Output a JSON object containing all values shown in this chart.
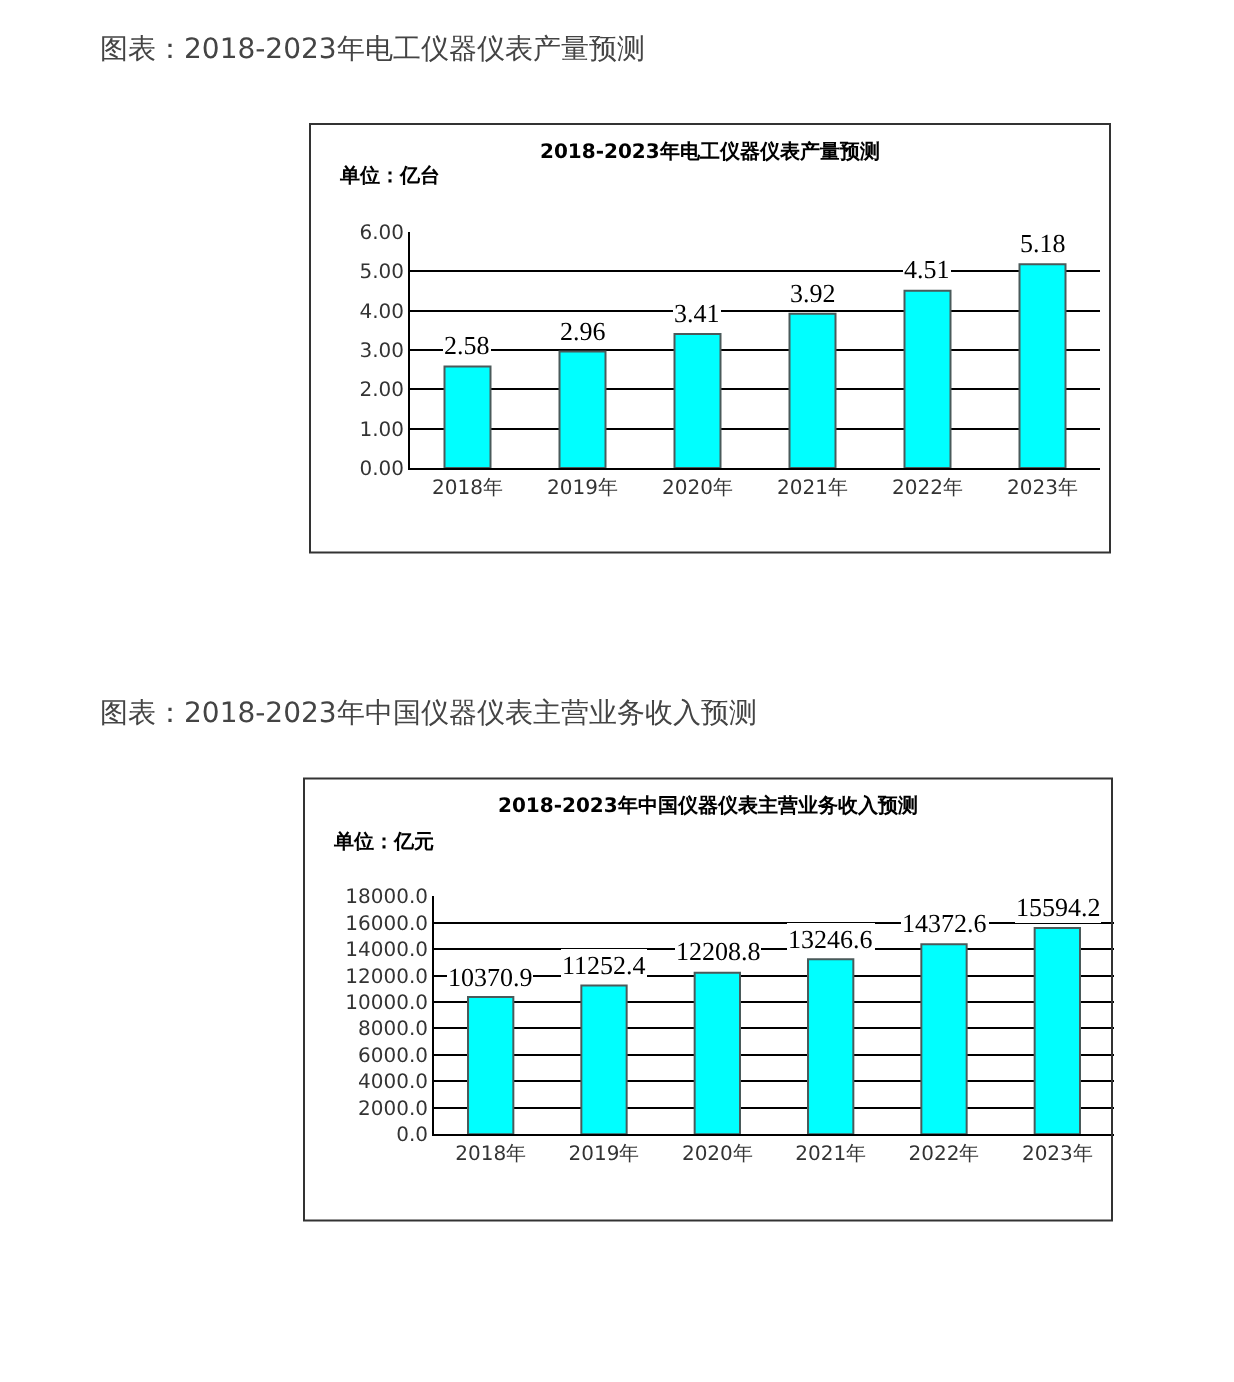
{
  "chart_data": [
    {
      "type": "bar",
      "title": "2018-2023年电工仪器仪表产量预测",
      "ylabel": "单位：亿台",
      "annotations": [
        "图表：2018-2023年电工仪器仪表产量预测"
      ],
      "categories": [
        "2018年",
        "2019年",
        "2020年",
        "2021年",
        "2022年",
        "2023年"
      ],
      "values": [
        2.58,
        2.96,
        3.41,
        3.92,
        4.51,
        5.18
      ],
      "color": "#00ffff",
      "ylim": [
        0,
        6
      ],
      "yticks": [
        {
          "value": 0,
          "label": "0.00"
        },
        {
          "value": 1,
          "label": "1.00"
        },
        {
          "value": 2,
          "label": "2.00"
        },
        {
          "value": 3,
          "label": "3.00"
        },
        {
          "value": 4,
          "label": "4.00"
        },
        {
          "value": 5,
          "label": "5.00"
        },
        {
          "value": 6,
          "label": "6.00"
        }
      ],
      "grid": "y",
      "data_labels": true
    },
    {
      "type": "bar",
      "title": "2018-2023年中国仪器仪表主营业务收入预测",
      "ylabel": "单位：亿元",
      "annotations": [
        "图表：2018-2023年中国仪器仪表主营业务收入预测"
      ],
      "categories": [
        "2018年",
        "2019年",
        "2020年",
        "2021年",
        "2022年",
        "2023年"
      ],
      "values": [
        10370.9,
        11252.4,
        12208.8,
        13246.6,
        14372.6,
        15594.2
      ],
      "color": "#00ffff",
      "ylim": [
        0,
        18000
      ],
      "yticks": [
        {
          "value": 0,
          "label": "0.0"
        },
        {
          "value": 2000,
          "label": "2000.0"
        },
        {
          "value": 4000,
          "label": "4000.0"
        },
        {
          "value": 6000,
          "label": "6000.0"
        },
        {
          "value": 8000,
          "label": "8000.0"
        },
        {
          "value": 10000,
          "label": "10000.0"
        },
        {
          "value": 12000,
          "label": "12000.0"
        },
        {
          "value": 14000,
          "label": "14000.0"
        },
        {
          "value": 16000,
          "label": "16000.0"
        },
        {
          "value": 18000,
          "label": "18000.0"
        }
      ],
      "grid": "y",
      "data_labels": true
    }
  ]
}
